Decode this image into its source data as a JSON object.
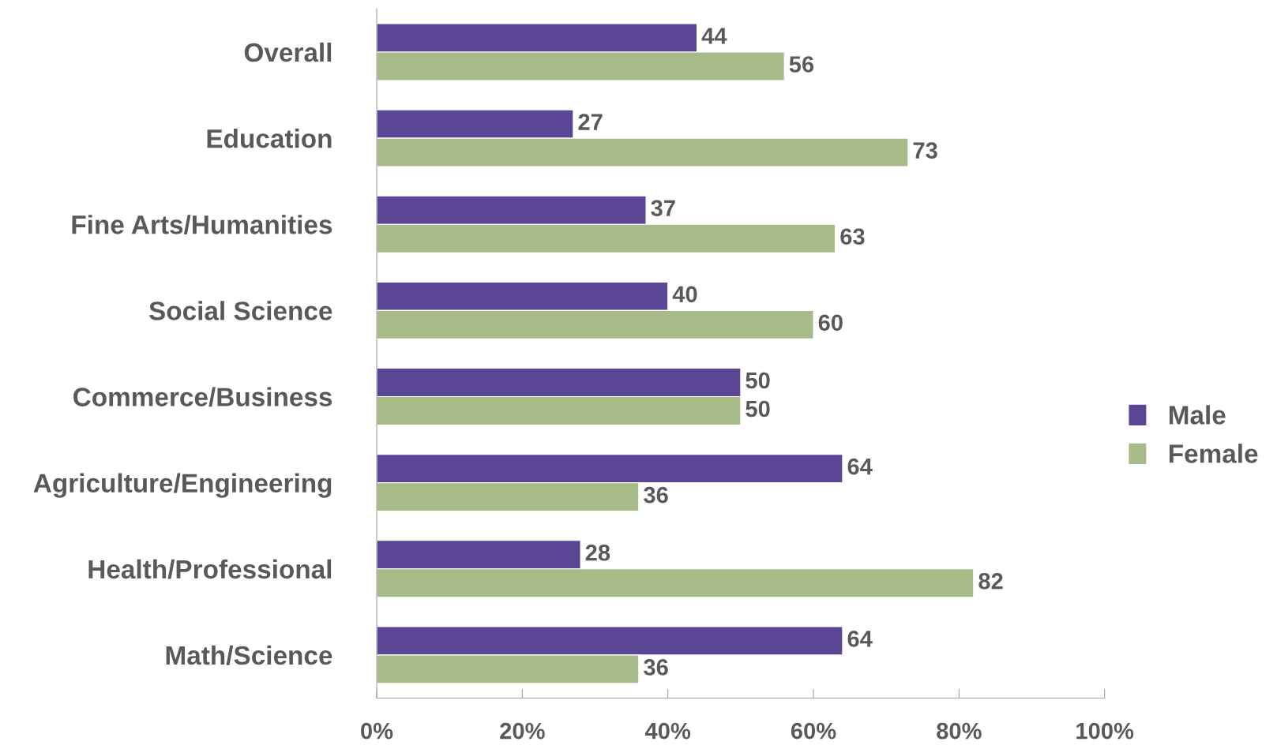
{
  "chart_data": {
    "type": "bar",
    "orientation": "horizontal",
    "categories": [
      "Overall",
      "Education",
      "Fine Arts/Humanities",
      "Social Science",
      "Commerce/Business",
      "Agriculture/Engineering",
      "Health/Professional",
      "Math/Science"
    ],
    "series": [
      {
        "name": "Male",
        "color": "#5b4696",
        "values": [
          44,
          27,
          37,
          40,
          50,
          64,
          28,
          64
        ]
      },
      {
        "name": "Female",
        "color": "#a6bb87",
        "values": [
          56,
          73,
          63,
          60,
          50,
          36,
          82,
          36
        ]
      }
    ],
    "xlim": [
      0,
      100
    ],
    "xticks": [
      {
        "value": 0,
        "label": "0%"
      },
      {
        "value": 20,
        "label": "20%"
      },
      {
        "value": 40,
        "label": "40%"
      },
      {
        "value": 60,
        "label": "60%"
      },
      {
        "value": 80,
        "label": "80%"
      },
      {
        "value": 100,
        "label": "100%"
      }
    ],
    "data_labels": true,
    "grid": false,
    "legend": "right"
  }
}
